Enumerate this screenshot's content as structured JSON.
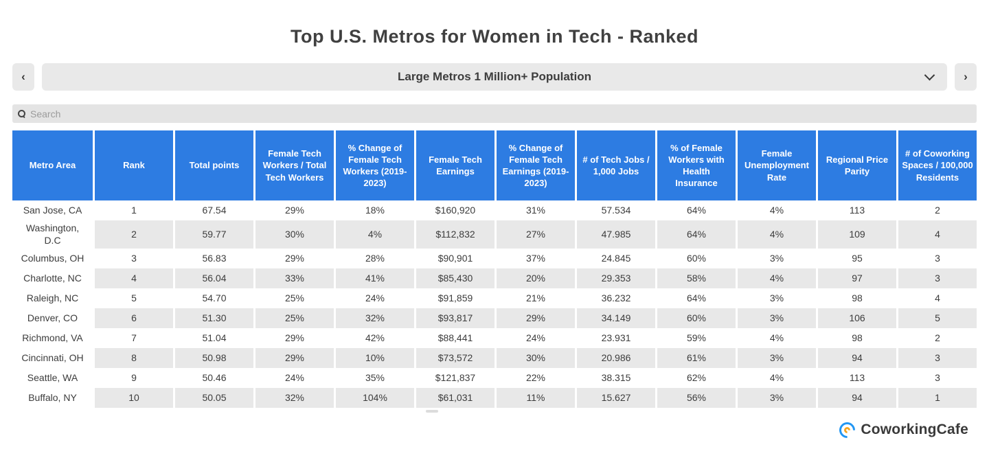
{
  "title": "Top U.S. Metros for Women in Tech - Ranked",
  "nav": {
    "prev_label": "‹",
    "next_label": "›",
    "dropdown_value": "Large Metros 1 Million+ Population"
  },
  "search": {
    "placeholder": "Search",
    "value": ""
  },
  "table": {
    "columns": [
      "Metro Area",
      "Rank",
      "Total points",
      "Female Tech Workers / Total Tech Workers",
      "% Change of Female Tech Workers (2019-2023)",
      "Female Tech Earnings",
      "% Change of Female Tech Earnings (2019-2023)",
      "# of Tech Jobs / 1,000 Jobs",
      "% of Female Workers with Health Insurance",
      "Female Unemployment Rate",
      "Regional Price Parity",
      "# of Coworking Spaces / 100,000 Residents"
    ],
    "rows": [
      [
        "San Jose, CA",
        "1",
        "67.54",
        "29%",
        "18%",
        "$160,920",
        "31%",
        "57.534",
        "64%",
        "4%",
        "113",
        "2"
      ],
      [
        "Washington, D.C",
        "2",
        "59.77",
        "30%",
        "4%",
        "$112,832",
        "27%",
        "47.985",
        "64%",
        "4%",
        "109",
        "4"
      ],
      [
        "Columbus, OH",
        "3",
        "56.83",
        "29%",
        "28%",
        "$90,901",
        "37%",
        "24.845",
        "60%",
        "3%",
        "95",
        "3"
      ],
      [
        "Charlotte, NC",
        "4",
        "56.04",
        "33%",
        "41%",
        "$85,430",
        "20%",
        "29.353",
        "58%",
        "4%",
        "97",
        "3"
      ],
      [
        "Raleigh, NC",
        "5",
        "54.70",
        "25%",
        "24%",
        "$91,859",
        "21%",
        "36.232",
        "64%",
        "3%",
        "98",
        "4"
      ],
      [
        "Denver, CO",
        "6",
        "51.30",
        "25%",
        "32%",
        "$93,817",
        "29%",
        "34.149",
        "60%",
        "3%",
        "106",
        "5"
      ],
      [
        "Richmond, VA",
        "7",
        "51.04",
        "29%",
        "42%",
        "$88,441",
        "24%",
        "23.931",
        "59%",
        "4%",
        "98",
        "2"
      ],
      [
        "Cincinnati, OH",
        "8",
        "50.98",
        "29%",
        "10%",
        "$73,572",
        "30%",
        "20.986",
        "61%",
        "3%",
        "94",
        "3"
      ],
      [
        "Seattle, WA",
        "9",
        "50.46",
        "24%",
        "35%",
        "$121,837",
        "22%",
        "38.315",
        "62%",
        "4%",
        "113",
        "3"
      ],
      [
        "Buffalo, NY",
        "10",
        "50.05",
        "32%",
        "104%",
        "$61,031",
        "11%",
        "15.627",
        "56%",
        "3%",
        "94",
        "1"
      ]
    ]
  },
  "footer": {
    "brand": "CoworkingCafe"
  },
  "colors": {
    "header_blue": "#2d7ce2",
    "stripe_gray": "#e8e8e8",
    "control_gray": "#e9e9e9",
    "brand_blue": "#2196f3",
    "brand_orange": "#f5a623",
    "text_dark": "#3c3c3c"
  }
}
